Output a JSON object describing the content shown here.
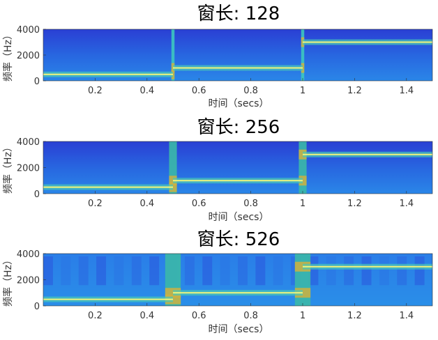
{
  "chart_data": [
    {
      "type": "heatmap",
      "title": "窗长: 128",
      "xlabel": "时间（secs）",
      "ylabel": "频率（Hz）",
      "xlim": [
        0,
        1.5
      ],
      "ylim": [
        0,
        4000
      ],
      "xticks": [
        0.2,
        0.4,
        0.6,
        0.8,
        1,
        1.2,
        1.4
      ],
      "xticklabels": [
        "0.2",
        "0.4",
        "0.6",
        "0.8",
        "1",
        "1.2",
        "1.4"
      ],
      "yticks": [
        0,
        2000,
        4000
      ],
      "yticklabels": [
        "0",
        "2000",
        "4000"
      ],
      "tones": [
        {
          "t_start": 0,
          "t_end": 0.5,
          "freq_hz": 500
        },
        {
          "t_start": 0.5,
          "t_end": 1.0,
          "freq_hz": 1000
        },
        {
          "t_start": 1.0,
          "t_end": 1.5,
          "freq_hz": 3000
        }
      ],
      "transitions": [
        {
          "t": 0.5,
          "halfwidth": 0.006
        },
        {
          "t": 1.0,
          "halfwidth": 0.006
        }
      ]
    },
    {
      "type": "heatmap",
      "title": "窗长: 256",
      "xlabel": "时间（secs）",
      "ylabel": "频率（Hz）",
      "xlim": [
        0,
        1.5
      ],
      "ylim": [
        0,
        4000
      ],
      "xticks": [
        0.2,
        0.4,
        0.6,
        0.8,
        1,
        1.2,
        1.4
      ],
      "xticklabels": [
        "0.2",
        "0.4",
        "0.6",
        "0.8",
        "1",
        "1.2",
        "1.4"
      ],
      "yticks": [
        0,
        2000,
        4000
      ],
      "yticklabels": [
        "0",
        "2000",
        "4000"
      ],
      "tones": [
        {
          "t_start": 0,
          "t_end": 0.5,
          "freq_hz": 500
        },
        {
          "t_start": 0.5,
          "t_end": 1.0,
          "freq_hz": 1000
        },
        {
          "t_start": 1.0,
          "t_end": 1.5,
          "freq_hz": 3000
        }
      ],
      "transitions": [
        {
          "t": 0.5,
          "halfwidth": 0.015
        },
        {
          "t": 1.0,
          "halfwidth": 0.015
        }
      ]
    },
    {
      "type": "heatmap",
      "title": "窗长: 526",
      "xlabel": "时间（secs）",
      "ylabel": "频率（Hz）",
      "xlim": [
        0,
        1.5
      ],
      "ylim": [
        0,
        4000
      ],
      "xticks": [
        0.2,
        0.4,
        0.6,
        0.8,
        1,
        1.2,
        1.4
      ],
      "xticklabels": [
        "0.2",
        "0.4",
        "0.6",
        "0.8",
        "1",
        "1.2",
        "1.4"
      ],
      "yticks": [
        0,
        2000,
        4000
      ],
      "yticklabels": [
        "0",
        "2000",
        "4000"
      ],
      "tones": [
        {
          "t_start": 0,
          "t_end": 0.5,
          "freq_hz": 500
        },
        {
          "t_start": 0.5,
          "t_end": 1.0,
          "freq_hz": 1000
        },
        {
          "t_start": 1.0,
          "t_end": 1.5,
          "freq_hz": 3000
        }
      ],
      "transitions": [
        {
          "t": 0.5,
          "halfwidth": 0.03
        },
        {
          "t": 1.0,
          "halfwidth": 0.03
        }
      ]
    }
  ],
  "colors": {
    "background_dark": "#1f3fd0",
    "background_mid": "#2a6ee8",
    "tone_core": "#f5f57a",
    "tone_glow": "#49c8b8",
    "transition": "#c8b040"
  }
}
